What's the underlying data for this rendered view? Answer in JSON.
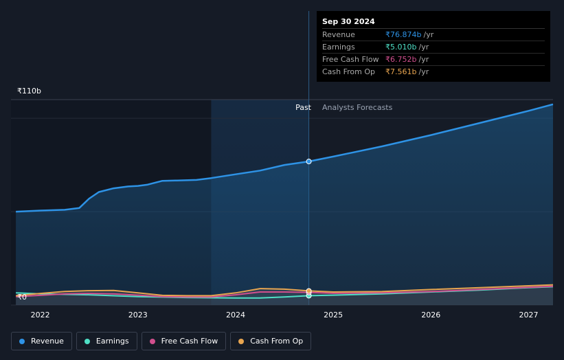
{
  "chart_data": {
    "type": "area",
    "currency": "₹",
    "y_labels": {
      "top": "₹110b",
      "bottom": "₹0"
    },
    "ylim": [
      0,
      110
    ],
    "xlim": [
      2021.7,
      2027.25
    ],
    "x_ticks": [
      {
        "value": 2022,
        "label": "2022"
      },
      {
        "value": 2023,
        "label": "2023"
      },
      {
        "value": 2024,
        "label": "2024"
      },
      {
        "value": 2025,
        "label": "2025"
      },
      {
        "value": 2026,
        "label": "2026"
      },
      {
        "value": 2027,
        "label": "2027"
      }
    ],
    "past_label": "Past",
    "forecast_label": "Analysts Forecasts",
    "divider_x": 2024.75,
    "past_start_x": 2023.75,
    "series": [
      {
        "name": "Revenue",
        "color": "#2e93e6",
        "points": [
          [
            2021.75,
            50
          ],
          [
            2022.0,
            50.6
          ],
          [
            2022.25,
            51
          ],
          [
            2022.4,
            52
          ],
          [
            2022.5,
            57
          ],
          [
            2022.6,
            60.5
          ],
          [
            2022.75,
            62.5
          ],
          [
            2022.9,
            63.5
          ],
          [
            2023.0,
            63.8
          ],
          [
            2023.1,
            64.5
          ],
          [
            2023.25,
            66.5
          ],
          [
            2023.4,
            66.7
          ],
          [
            2023.6,
            67
          ],
          [
            2023.75,
            68
          ],
          [
            2024.0,
            70
          ],
          [
            2024.25,
            72
          ],
          [
            2024.5,
            75
          ],
          [
            2024.75,
            76.874
          ],
          [
            2025.0,
            79.5
          ],
          [
            2025.5,
            85
          ],
          [
            2026.0,
            91
          ],
          [
            2026.5,
            97.5
          ],
          [
            2027.0,
            104
          ],
          [
            2027.25,
            107.5
          ]
        ]
      },
      {
        "name": "Earnings",
        "color": "#4fe0c6",
        "points": [
          [
            2021.75,
            6.5
          ],
          [
            2022.0,
            6
          ],
          [
            2022.5,
            5.5
          ],
          [
            2023.0,
            4.5
          ],
          [
            2023.5,
            4
          ],
          [
            2024.0,
            3.8
          ],
          [
            2024.25,
            3.8
          ],
          [
            2024.5,
            4.3
          ],
          [
            2024.75,
            5.01
          ],
          [
            2025.0,
            5.3
          ],
          [
            2025.5,
            6
          ],
          [
            2026.0,
            7
          ],
          [
            2026.5,
            8
          ],
          [
            2027.0,
            9.3
          ],
          [
            2027.25,
            9.8
          ]
        ]
      },
      {
        "name": "Free Cash Flow",
        "color": "#d14f8e",
        "points": [
          [
            2021.75,
            4.5
          ],
          [
            2022.0,
            5.2
          ],
          [
            2022.25,
            6
          ],
          [
            2022.5,
            6.2
          ],
          [
            2022.75,
            6
          ],
          [
            2023.0,
            5.3
          ],
          [
            2023.25,
            4.5
          ],
          [
            2023.5,
            4.3
          ],
          [
            2023.75,
            4.3
          ],
          [
            2024.0,
            5.5
          ],
          [
            2024.25,
            7
          ],
          [
            2024.5,
            7
          ],
          [
            2024.75,
            6.752
          ],
          [
            2025.0,
            6.3
          ],
          [
            2025.5,
            6.5
          ],
          [
            2026.0,
            7.2
          ],
          [
            2026.5,
            8.3
          ],
          [
            2027.0,
            9.5
          ],
          [
            2027.25,
            10
          ]
        ]
      },
      {
        "name": "Cash From Op",
        "color": "#e8a550",
        "points": [
          [
            2021.75,
            5
          ],
          [
            2022.0,
            6.2
          ],
          [
            2022.25,
            7.3
          ],
          [
            2022.5,
            7.7
          ],
          [
            2022.75,
            7.8
          ],
          [
            2023.0,
            6.5
          ],
          [
            2023.25,
            5.2
          ],
          [
            2023.5,
            5
          ],
          [
            2023.75,
            5
          ],
          [
            2024.0,
            6.5
          ],
          [
            2024.25,
            8.8
          ],
          [
            2024.5,
            8.5
          ],
          [
            2024.75,
            7.561
          ],
          [
            2025.0,
            7
          ],
          [
            2025.5,
            7.2
          ],
          [
            2026.0,
            8.3
          ],
          [
            2026.5,
            9.3
          ],
          [
            2027.0,
            10.3
          ],
          [
            2027.25,
            10.8
          ]
        ]
      }
    ]
  },
  "tooltip": {
    "date": "Sep 30 2024",
    "rows": [
      {
        "label": "Revenue",
        "value": "₹76.874b",
        "unit": "/yr",
        "color": "#2e93e6"
      },
      {
        "label": "Earnings",
        "value": "₹5.010b",
        "unit": "/yr",
        "color": "#4fe0c6"
      },
      {
        "label": "Free Cash Flow",
        "value": "₹6.752b",
        "unit": "/yr",
        "color": "#d14f8e"
      },
      {
        "label": "Cash From Op",
        "value": "₹7.561b",
        "unit": "/yr",
        "color": "#e8a550"
      }
    ]
  },
  "legend": [
    {
      "label": "Revenue",
      "color": "#2e93e6"
    },
    {
      "label": "Earnings",
      "color": "#4fe0c6"
    },
    {
      "label": "Free Cash Flow",
      "color": "#d14f8e"
    },
    {
      "label": "Cash From Op",
      "color": "#e8a550"
    }
  ]
}
